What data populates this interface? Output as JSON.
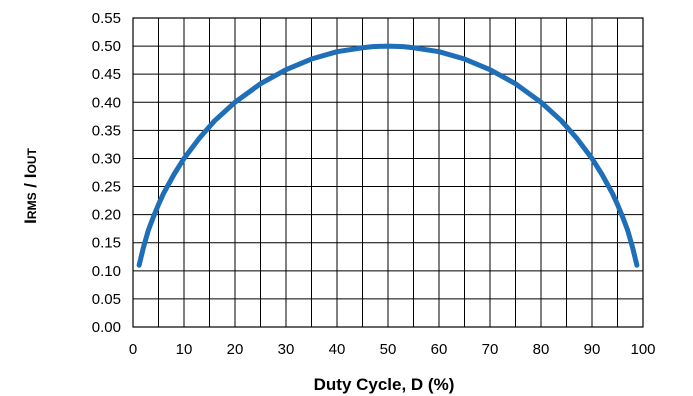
{
  "chart_data": {
    "type": "line",
    "title": "",
    "xlabel": "Duty Cycle, D (%)",
    "ylabel": {
      "i1": "I",
      "sub1": "RMS",
      "sep": " / ",
      "i2": "I",
      "sub2": "OUT"
    },
    "xlim": [
      0,
      100
    ],
    "ylim": [
      0,
      0.55
    ],
    "x_ticks": [
      0,
      10,
      20,
      30,
      40,
      50,
      60,
      70,
      80,
      90,
      100
    ],
    "x_tick_labels": [
      "0",
      "10",
      "20",
      "30",
      "40",
      "50",
      "60",
      "70",
      "80",
      "90",
      "100"
    ],
    "y_ticks": [
      0,
      0.05,
      0.1,
      0.15,
      0.2,
      0.25,
      0.3,
      0.35,
      0.4,
      0.45,
      0.5,
      0.55
    ],
    "y_tick_labels": [
      "0.00",
      "0.05",
      "0.10",
      "0.15",
      "0.20",
      "0.25",
      "0.30",
      "0.35",
      "0.40",
      "0.45",
      "0.50",
      "0.55"
    ],
    "grid": true,
    "x_grid_step": 5,
    "series": [
      {
        "color": "#1f6eb8",
        "x": [
          1.2,
          2,
          3,
          4,
          5,
          6,
          8,
          10,
          13,
          16,
          20,
          25,
          30,
          35,
          40,
          45,
          47,
          50,
          53,
          55,
          60,
          65,
          70,
          75,
          80,
          84,
          87,
          90,
          92,
          94,
          95,
          96,
          97,
          98,
          98.8
        ],
        "y": [
          0.11,
          0.14,
          0.172,
          0.196,
          0.218,
          0.238,
          0.271,
          0.3,
          0.336,
          0.367,
          0.4,
          0.433,
          0.458,
          0.477,
          0.49,
          0.497,
          0.499,
          0.5,
          0.499,
          0.497,
          0.49,
          0.477,
          0.458,
          0.433,
          0.4,
          0.367,
          0.336,
          0.3,
          0.271,
          0.238,
          0.218,
          0.196,
          0.172,
          0.14,
          0.11
        ]
      }
    ]
  }
}
